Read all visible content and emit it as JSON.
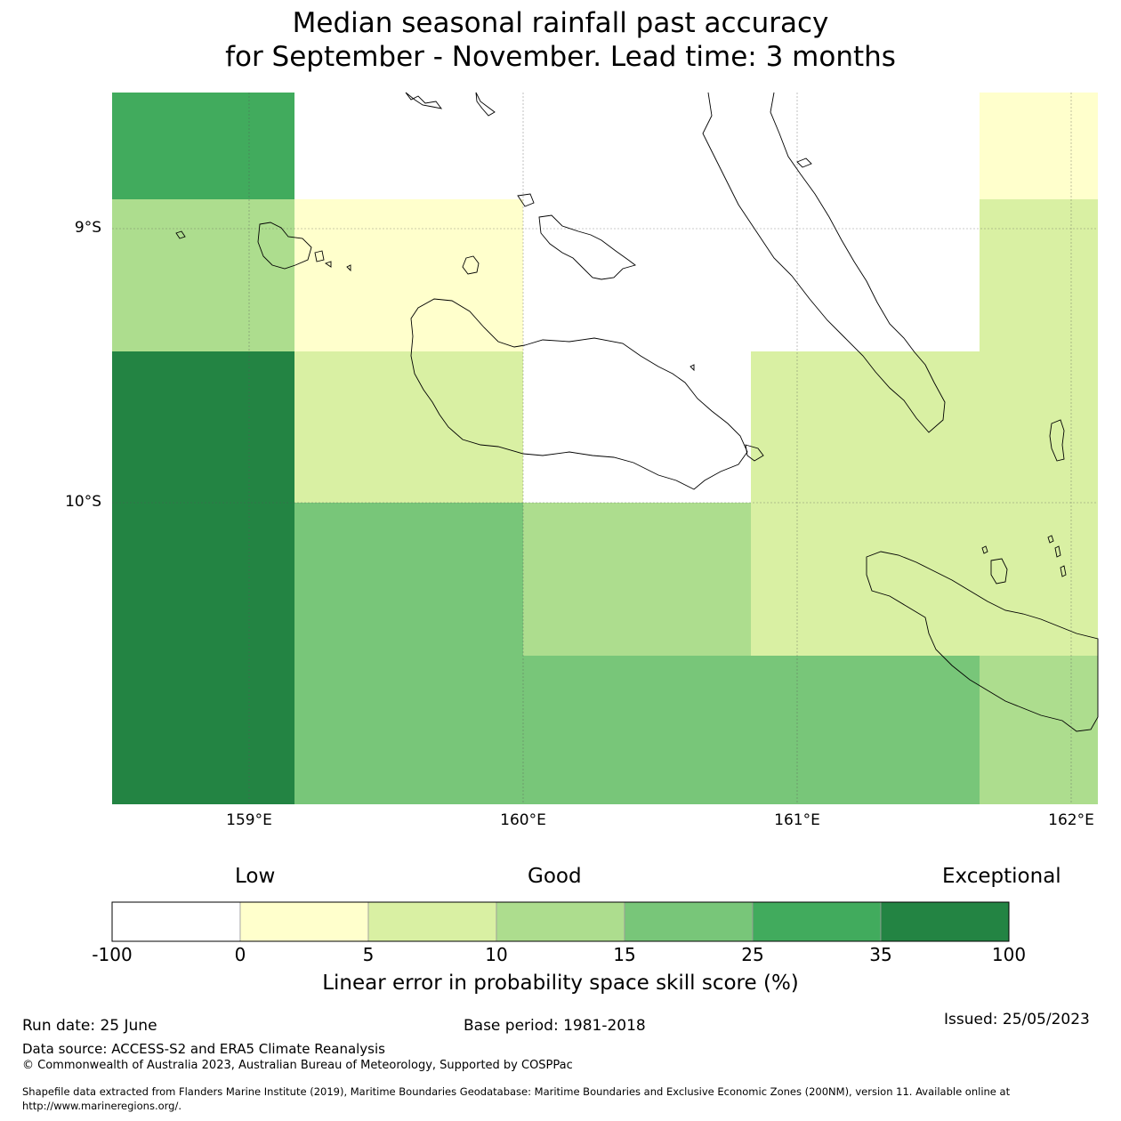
{
  "title": {
    "line1": "Median seasonal rainfall past accuracy",
    "line2": "for September - November. Lead time: 3 months"
  },
  "map": {
    "lat_labels": [
      "9°S",
      "10°S"
    ],
    "lon_labels": [
      "159°E",
      "160°E",
      "161°E",
      "162°E"
    ],
    "grid_cells": [
      {
        "row": 0,
        "col": 0,
        "bin": "25-35"
      },
      {
        "row": 0,
        "col": 1,
        "bin": "no-data"
      },
      {
        "row": 0,
        "col": 2,
        "bin": "no-data"
      },
      {
        "row": 0,
        "col": 3,
        "bin": "no-data"
      },
      {
        "row": 0,
        "col": 4,
        "bin": "0-5"
      },
      {
        "row": 1,
        "col": 0,
        "bin": "10-15"
      },
      {
        "row": 1,
        "col": 1,
        "bin": "0-5"
      },
      {
        "row": 1,
        "col": 2,
        "bin": "no-data"
      },
      {
        "row": 1,
        "col": 3,
        "bin": "no-data"
      },
      {
        "row": 1,
        "col": 4,
        "bin": "5-10"
      },
      {
        "row": 2,
        "col": 0,
        "bin": "35-100"
      },
      {
        "row": 2,
        "col": 1,
        "bin": "5-10"
      },
      {
        "row": 2,
        "col": 2,
        "bin": "no-data"
      },
      {
        "row": 2,
        "col": 3,
        "bin": "5-10"
      },
      {
        "row": 2,
        "col": 4,
        "bin": "5-10"
      },
      {
        "row": 3,
        "col": 0,
        "bin": "35-100"
      },
      {
        "row": 3,
        "col": 1,
        "bin": "15-25"
      },
      {
        "row": 3,
        "col": 2,
        "bin": "10-15"
      },
      {
        "row": 3,
        "col": 3,
        "bin": "5-10"
      },
      {
        "row": 3,
        "col": 4,
        "bin": "5-10"
      },
      {
        "row": 4,
        "col": 0,
        "bin": "35-100"
      },
      {
        "row": 4,
        "col": 1,
        "bin": "15-25"
      },
      {
        "row": 4,
        "col": 2,
        "bin": "15-25"
      },
      {
        "row": 4,
        "col": 3,
        "bin": "15-25"
      },
      {
        "row": 4,
        "col": 4,
        "bin": "10-15"
      }
    ]
  },
  "colorbar": {
    "categories": [
      "Low",
      "Good",
      "Exceptional"
    ],
    "ticks": [
      "-100",
      "0",
      "5",
      "10",
      "15",
      "25",
      "35",
      "100"
    ],
    "colors": [
      "#ffffff",
      "#ffffcc",
      "#d9f0a3",
      "#addd8e",
      "#78c679",
      "#41ab5d",
      "#238443"
    ],
    "label": "Linear error in probability space skill score (%)"
  },
  "footer": {
    "run_date": "Run date: 25 June",
    "base_period": "Base period: 1981-2018",
    "issued": "Issued: 25/05/2023",
    "data_source": "Data source: ACCESS-S2 and ERA5 Climate Reanalysis",
    "copyright": "© Commonwealth of Australia 2023, Australian Bureau of Meteorology, Supported by COSPPac",
    "shapefile_line1": "Shapefile data extracted from Flanders Marine Institute (2019), Maritime Boundaries Geodatabase: Maritime Boundaries and Exclusive Economic Zones (200NM), version 11. Available online at",
    "shapefile_line2": "http://www.marineregions.org/."
  }
}
